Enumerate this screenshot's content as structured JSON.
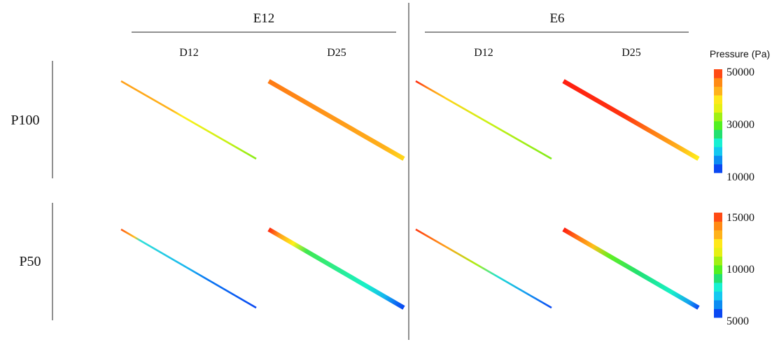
{
  "column_groups": [
    {
      "label": "E12",
      "columns": [
        "D12",
        "D25"
      ]
    },
    {
      "label": "E6",
      "columns": [
        "D12",
        "D25"
      ]
    }
  ],
  "row_labels": [
    "P100",
    "P50"
  ],
  "colorbar": {
    "title": "Pressure (Pa)",
    "colors": [
      "#0a48f2",
      "#0c8cf2",
      "#14c8f0",
      "#18f0d2",
      "#22e070",
      "#52f020",
      "#a0f014",
      "#e6f014",
      "#ffe81a",
      "#ffb21a",
      "#ff8a14",
      "#ff4a14"
    ],
    "top": {
      "labels": [
        "50000",
        "30000",
        "10000"
      ]
    },
    "bottom": {
      "labels": [
        "15000",
        "10000",
        "5000"
      ]
    }
  },
  "panels": [
    {
      "row": 0,
      "col": 0,
      "thick": false,
      "stops": [
        {
          "t": 0,
          "c": "#ffa01a"
        },
        {
          "t": 0.38,
          "c": "#ffb41a"
        },
        {
          "t": 0.45,
          "c": "#fff01a"
        },
        {
          "t": 0.78,
          "c": "#c8f014"
        },
        {
          "t": 1,
          "c": "#88ec14"
        }
      ]
    },
    {
      "row": 0,
      "col": 1,
      "thick": true,
      "stops": [
        {
          "t": 0,
          "c": "#ff7a14"
        },
        {
          "t": 0.5,
          "c": "#ff9a1a"
        },
        {
          "t": 0.85,
          "c": "#ffb01a"
        },
        {
          "t": 1,
          "c": "#ffd81a"
        }
      ]
    },
    {
      "row": 0,
      "col": 2,
      "thick": false,
      "stops": [
        {
          "t": 0,
          "c": "#ff2a10"
        },
        {
          "t": 0.1,
          "c": "#ff8a14"
        },
        {
          "t": 0.22,
          "c": "#ffd21a"
        },
        {
          "t": 0.5,
          "c": "#d0f014"
        },
        {
          "t": 1,
          "c": "#80ec18"
        }
      ]
    },
    {
      "row": 0,
      "col": 3,
      "thick": true,
      "stops": [
        {
          "t": 0,
          "c": "#ff1e10"
        },
        {
          "t": 0.45,
          "c": "#ff3410"
        },
        {
          "t": 0.65,
          "c": "#ff7a14"
        },
        {
          "t": 0.85,
          "c": "#ffb01a"
        },
        {
          "t": 1,
          "c": "#fff01a"
        }
      ]
    },
    {
      "row": 1,
      "col": 0,
      "thick": false,
      "stops": [
        {
          "t": 0,
          "c": "#ff5a14"
        },
        {
          "t": 0.1,
          "c": "#ffc01a"
        },
        {
          "t": 0.14,
          "c": "#30e0d8"
        },
        {
          "t": 0.5,
          "c": "#18b4f0"
        },
        {
          "t": 0.62,
          "c": "#0a7af2"
        },
        {
          "t": 1,
          "c": "#0a48f2"
        }
      ]
    },
    {
      "row": 1,
      "col": 1,
      "thick": true,
      "stops": [
        {
          "t": 0,
          "c": "#ff2a10"
        },
        {
          "t": 0.08,
          "c": "#ffa01a"
        },
        {
          "t": 0.18,
          "c": "#fff01a"
        },
        {
          "t": 0.28,
          "c": "#40e850"
        },
        {
          "t": 0.72,
          "c": "#18f0c8"
        },
        {
          "t": 0.86,
          "c": "#14b4f0"
        },
        {
          "t": 0.96,
          "c": "#0a5af2"
        },
        {
          "t": 1,
          "c": "#0a48f2"
        }
      ]
    },
    {
      "row": 1,
      "col": 2,
      "thick": false,
      "stops": [
        {
          "t": 0,
          "c": "#ff3a10"
        },
        {
          "t": 0.22,
          "c": "#ffa01a"
        },
        {
          "t": 0.45,
          "c": "#a8f014"
        },
        {
          "t": 0.6,
          "c": "#20e0d2"
        },
        {
          "t": 0.8,
          "c": "#14a0f0"
        },
        {
          "t": 1,
          "c": "#0a48f2"
        }
      ]
    },
    {
      "row": 1,
      "col": 3,
      "thick": true,
      "stops": [
        {
          "t": 0,
          "c": "#ff1e10"
        },
        {
          "t": 0.1,
          "c": "#ff7014"
        },
        {
          "t": 0.22,
          "c": "#ffc01a"
        },
        {
          "t": 0.34,
          "c": "#62f020"
        },
        {
          "t": 0.55,
          "c": "#22e070"
        },
        {
          "t": 0.8,
          "c": "#18f0c8"
        },
        {
          "t": 0.93,
          "c": "#14a0f0"
        },
        {
          "t": 1,
          "c": "#0a48f2"
        }
      ]
    }
  ]
}
